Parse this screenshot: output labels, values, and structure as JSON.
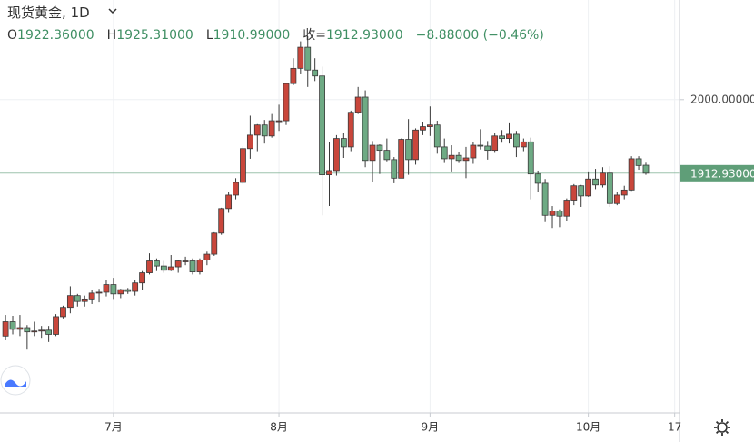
{
  "chart_data": {
    "type": "candlestick",
    "header": {
      "title": "现货黄金",
      "interval": "1D",
      "legend": [
        {
          "key": "O",
          "value": "1922.36000"
        },
        {
          "key": "H",
          "value": "1925.31000"
        },
        {
          "key": "L",
          "value": "1910.99000"
        },
        {
          "key": "收=",
          "value": "1912.93000"
        },
        {
          "key": "",
          "value": "−8.88000 (−0.46%)"
        }
      ]
    },
    "categories": [
      null,
      null,
      null,
      null,
      null,
      null,
      null,
      null,
      null,
      null,
      null,
      null,
      null,
      null,
      null,
      "7月",
      null,
      null,
      null,
      null,
      null,
      null,
      null,
      null,
      null,
      null,
      null,
      null,
      null,
      null,
      null,
      null,
      null,
      null,
      null,
      null,
      null,
      null,
      "8月",
      null,
      null,
      null,
      null,
      null,
      null,
      null,
      null,
      null,
      null,
      null,
      null,
      null,
      null,
      null,
      null,
      null,
      null,
      null,
      null,
      "9月",
      null,
      null,
      null,
      null,
      null,
      null,
      null,
      null,
      null,
      null,
      null,
      null,
      null,
      null,
      null,
      null,
      null,
      null,
      null,
      null,
      null,
      "10月",
      null,
      null,
      null,
      null,
      null,
      null,
      null,
      null,
      null,
      null,
      null,
      "17"
    ],
    "open": [
      1720,
      1737,
      1728,
      1730,
      1725,
      1726,
      1727,
      1722,
      1743,
      1754,
      1768,
      1761,
      1764,
      1771,
      1772,
      1781,
      1770,
      1775,
      1773,
      1783,
      1795,
      1809,
      1803,
      1798,
      1802,
      1809,
      1809,
      1796,
      1810,
      1817,
      1842,
      1871,
      1887,
      1902,
      1942,
      1958,
      1970,
      1957,
      1975,
      1975,
      2019,
      2037,
      2062,
      2035,
      2028,
      1911,
      1916,
      1954,
      1944,
      1985,
      2003,
      1928,
      1946,
      1940,
      1929,
      1907,
      1953,
      1929,
      1964,
      1968,
      1970,
      1944,
      1930,
      1934,
      1928,
      1931,
      1946,
      1945,
      1940,
      1957,
      1954,
      1959,
      1944,
      1950,
      1912,
      1901,
      1863,
      1868,
      1862,
      1881,
      1898,
      1886,
      1906,
      1899,
      1913,
      1877,
      1887,
      1893,
      1930,
      1922.36,
      null,
      null,
      null,
      null
    ],
    "high": [
      1745,
      1744,
      1745,
      1733,
      1737,
      1732,
      1732,
      1746,
      1756,
      1779,
      1770,
      1768,
      1775,
      1776,
      1786,
      1789,
      1776,
      1777,
      1786,
      1797,
      1818,
      1812,
      1809,
      1816,
      1810,
      1814,
      1812,
      1812,
      1820,
      1843,
      1872,
      1891,
      1907,
      1945,
      1981,
      1971,
      1976,
      1983,
      1994,
      2020,
      2049,
      2069,
      2075,
      2049,
      2039,
      1950,
      1958,
      1961,
      1987,
      2015,
      2011,
      1951,
      1947,
      1954,
      1932,
      1954,
      1977,
      1966,
      1974,
      1992,
      1975,
      1954,
      1946,
      1938,
      1944,
      1950,
      1965,
      1951,
      1960,
      1964,
      1973,
      1963,
      1954,
      1955,
      1916,
      1906,
      1874,
      1870,
      1883,
      1900,
      1899,
      1915,
      1918,
      1920,
      1921,
      1891,
      1898,
      1933,
      1933,
      1925.31,
      null,
      null,
      null,
      null
    ],
    "low": [
      1715,
      1722,
      1720,
      1704,
      1720,
      1718,
      1713,
      1720,
      1741,
      1747,
      1755,
      1755,
      1758,
      1760,
      1767,
      1764,
      1765,
      1770,
      1768,
      1775,
      1793,
      1797,
      1795,
      1797,
      1795,
      1804,
      1793,
      1793,
      1804,
      1815,
      1840,
      1866,
      1882,
      1900,
      1930,
      1939,
      1948,
      1955,
      1963,
      1970,
      2017,
      2031,
      2015,
      2022,
      1863,
      1874,
      1910,
      1931,
      1939,
      1983,
      1920,
      1902,
      1912,
      1927,
      1901,
      1907,
      1911,
      1923,
      1958,
      1957,
      1936,
      1925,
      1915,
      1925,
      1907,
      1924,
      1941,
      1929,
      1937,
      1949,
      1948,
      1932,
      1939,
      1882,
      1891,
      1855,
      1848,
      1849,
      1856,
      1875,
      1873,
      1885,
      1894,
      1896,
      1873,
      1875,
      1882,
      1892,
      1917,
      1910.99,
      null,
      null,
      null,
      null
    ],
    "close": [
      1737,
      1728,
      1730,
      1725,
      1726,
      1727,
      1722,
      1743,
      1754,
      1768,
      1761,
      1764,
      1771,
      1772,
      1781,
      1770,
      1775,
      1773,
      1783,
      1795,
      1809,
      1803,
      1798,
      1802,
      1809,
      1809,
      1796,
      1810,
      1817,
      1842,
      1871,
      1887,
      1902,
      1942,
      1958,
      1970,
      1957,
      1975,
      1975,
      2019,
      2037,
      2062,
      2035,
      2028,
      1911,
      1916,
      1954,
      1944,
      1985,
      2003,
      1928,
      1946,
      1940,
      1929,
      1907,
      1953,
      1929,
      1964,
      1968,
      1970,
      1944,
      1930,
      1934,
      1928,
      1931,
      1946,
      1945,
      1940,
      1957,
      1954,
      1959,
      1944,
      1950,
      1912,
      1901,
      1863,
      1868,
      1862,
      1881,
      1898,
      1886,
      1906,
      1899,
      1913,
      1877,
      1887,
      1893,
      1930,
      1922,
      1912.93,
      null,
      null,
      null,
      null
    ],
    "up_color": "#c9463b",
    "down_color": "#6eaa84",
    "ylim": [
      1629,
      2118
    ],
    "yticks": [
      {
        "value": 2000,
        "label": "2000.00000"
      }
    ],
    "last_price": {
      "value": 1912.93,
      "label": "1912.93000",
      "color": "#5f9e78"
    },
    "grid": true
  }
}
